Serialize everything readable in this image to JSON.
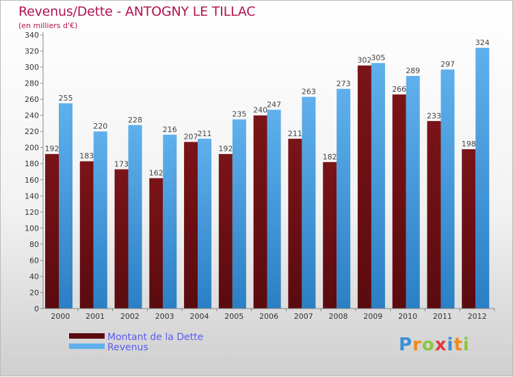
{
  "title": "Revenus/Dette - ANTOGNY LE TILLAC",
  "subtitle": "(en milliers d'€)",
  "colors": {
    "title": "#b0134f",
    "dette": "#7a1418",
    "dette_dark": "#5a0b0f",
    "revenus": "#5fb0ec",
    "revenus_dark": "#2b7fc4",
    "legend_text": "#5a5af0"
  },
  "legend": {
    "dette_label": "Montant de la Dette",
    "revenus_label": "Revenus"
  },
  "logo": {
    "letters": [
      "P",
      "r",
      "o",
      "x",
      "i",
      "t",
      "i"
    ],
    "letter_colors": [
      "#3a8fd6",
      "#f08a1c",
      "#8dc63f",
      "#e23a3a",
      "#3a8fd6",
      "#f08a1c",
      "#8dc63f"
    ]
  },
  "chart_data": {
    "type": "bar",
    "categories": [
      "2000",
      "2001",
      "2002",
      "2003",
      "2004",
      "2005",
      "2006",
      "2007",
      "2008",
      "2009",
      "2010",
      "2011",
      "2012"
    ],
    "series": [
      {
        "name": "Montant de la Dette",
        "values": [
          192,
          183,
          173,
          162,
          207,
          192,
          240,
          211,
          182,
          302,
          266,
          233,
          198
        ]
      },
      {
        "name": "Revenus",
        "values": [
          255,
          220,
          228,
          216,
          211,
          235,
          247,
          263,
          273,
          305,
          289,
          297,
          324
        ]
      }
    ],
    "ylim": [
      0,
      340
    ],
    "ytick_step": 20,
    "grid": false,
    "legend_position": "bottom-left"
  }
}
